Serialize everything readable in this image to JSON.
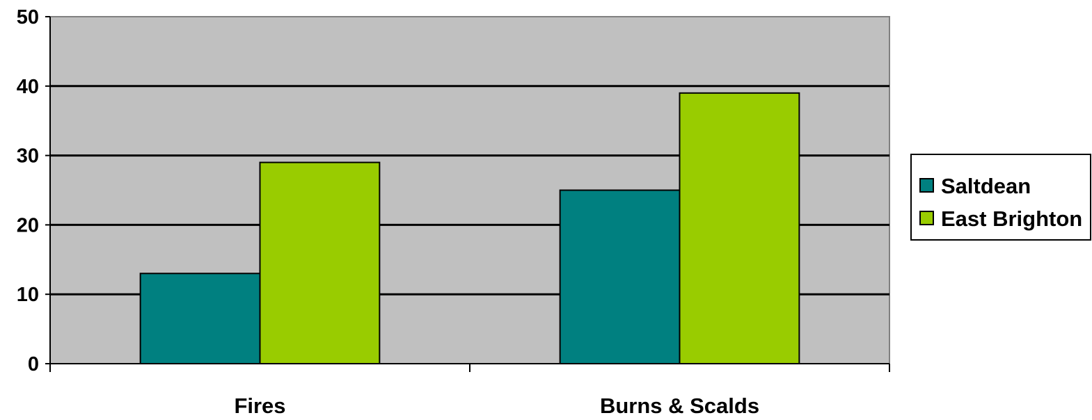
{
  "chart_data": {
    "type": "bar",
    "title": "",
    "xlabel": "",
    "ylabel": "",
    "categories": [
      "Fires",
      "Burns & Scalds"
    ],
    "series": [
      {
        "name": "Saltdean",
        "values": [
          13,
          25
        ]
      },
      {
        "name": "East Brighton",
        "values": [
          29,
          39
        ]
      }
    ],
    "ylim": [
      0,
      50
    ],
    "yticks": [
      "0",
      "10",
      "20",
      "30",
      "40",
      "50"
    ],
    "grid": true,
    "legend_position": "right",
    "colors": {
      "plot_background": "#c0c0c0",
      "gridline": "#000000",
      "Saltdean": "#008080",
      "East Brighton": "#99cc00"
    }
  }
}
